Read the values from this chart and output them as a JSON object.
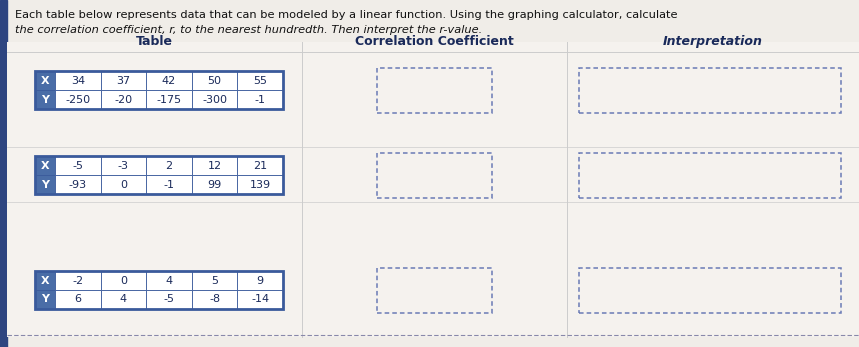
{
  "title_line1": "Each table below represents data that can be modeled by a linear function. Using the graphing calculator, calculate",
  "title_line2": "the correlation coefficient, r, to the nearest hundredth. Then interpret the r-value.",
  "col_headers": [
    "Table",
    "Correlation Coefficient",
    "Interpretation"
  ],
  "tables": [
    {
      "rows": [
        [
          "X",
          "-2",
          "0",
          "4",
          "5",
          "9"
        ],
        [
          "Y",
          "6",
          "4",
          "-5",
          "-8",
          "-14"
        ]
      ]
    },
    {
      "rows": [
        [
          "X",
          "-5",
          "-3",
          "2",
          "12",
          "21"
        ],
        [
          "Y",
          "-93",
          "0",
          "-1",
          "99",
          "139"
        ]
      ]
    },
    {
      "rows": [
        [
          "X",
          "34",
          "37",
          "42",
          "50",
          "55"
        ],
        [
          "Y",
          "-250",
          "-20",
          "-175",
          "-300",
          "-1"
        ]
      ]
    }
  ],
  "table_border_color": "#3a5a9b",
  "label_cell_bg": "#4a6da7",
  "label_cell_fg": "#ffffff",
  "data_cell_bg": "#ffffff",
  "data_cell_fg": "#1a2a5a",
  "header_fg": "#1a2a5a",
  "dashed_box_color": "#6a7ab5",
  "page_bg": "#f0ede8",
  "content_bg": "#f5f2ee",
  "left_bar_color": "#2e4580",
  "divider_color": "#cccccc",
  "bottom_dash_color": "#8888aa"
}
